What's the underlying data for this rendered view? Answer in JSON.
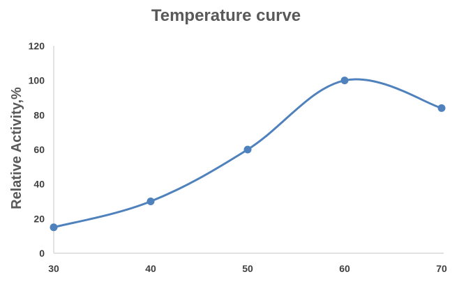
{
  "chart_data": {
    "type": "line",
    "title": "Temperature curve",
    "xlabel": "",
    "ylabel": "Relative Activity,%",
    "x": [
      30,
      40,
      50,
      60,
      70
    ],
    "y": [
      15,
      30,
      60,
      100,
      84
    ],
    "xticks": [
      "30",
      "40",
      "50",
      "60",
      "70"
    ],
    "yticks": [
      "0",
      "20",
      "40",
      "60",
      "80",
      "100",
      "120"
    ],
    "ylim": [
      0,
      120
    ],
    "smooth": true,
    "grid": false,
    "colors": {
      "series": "#4f81bd",
      "axis": "#d9d9d9",
      "text": "#595959"
    }
  }
}
